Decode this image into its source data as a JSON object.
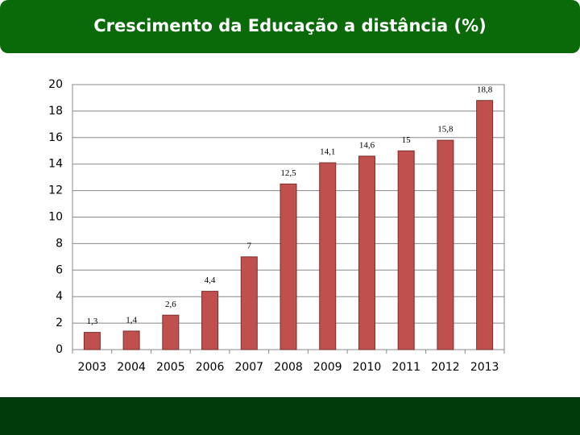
{
  "chart_data": {
    "type": "bar",
    "title": "Crescimento da Educação a distância (%)",
    "categories": [
      "2003",
      "2004",
      "2005",
      "2006",
      "2007",
      "2008",
      "2009",
      "2010",
      "2011",
      "2012",
      "2013"
    ],
    "values": [
      1.3,
      1.4,
      2.6,
      4.4,
      7,
      12.5,
      14.1,
      14.6,
      15,
      15.8,
      18.8
    ],
    "value_labels": [
      "1,3",
      "1,4",
      "2,6",
      "4,4",
      "7",
      "12,5",
      "14,1",
      "14,6",
      "15",
      "15,8",
      "18,8"
    ],
    "color": "#c0504d",
    "ylim": [
      0,
      20
    ],
    "yticks": [
      0,
      2,
      4,
      6,
      8,
      10,
      12,
      14,
      16,
      18,
      20
    ],
    "grid": true
  }
}
